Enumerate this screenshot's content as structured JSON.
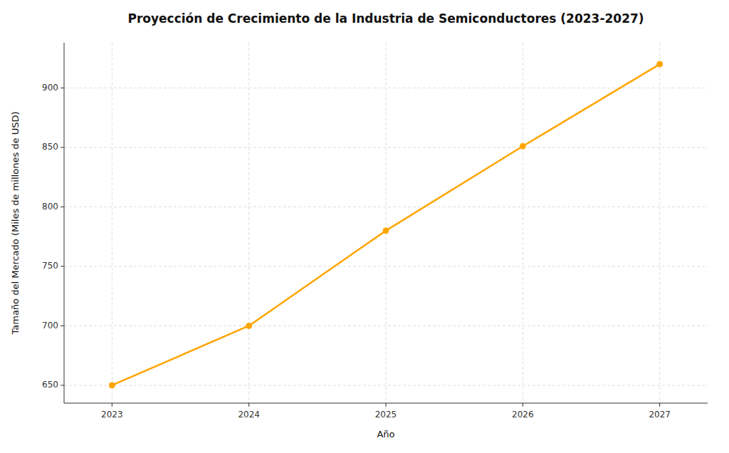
{
  "chart_data": {
    "type": "line",
    "title": "Proyección de Crecimiento de la Industria de Semiconductores (2023-2027)",
    "xlabel": "Año",
    "ylabel": "Tamaño del Mercado (Miles de millones de USD)",
    "x": [
      2023,
      2024,
      2025,
      2026,
      2027
    ],
    "values": [
      650,
      700,
      780,
      851,
      920
    ],
    "color": "#FFA500",
    "marker": "circle",
    "xlim": [
      2022.65,
      2027.35
    ],
    "xticks": [
      2023,
      2024,
      2025,
      2026,
      2027
    ],
    "ylim": [
      635,
      938
    ],
    "yticks": [
      650,
      700,
      750,
      800,
      850,
      900
    ],
    "grid": true
  }
}
